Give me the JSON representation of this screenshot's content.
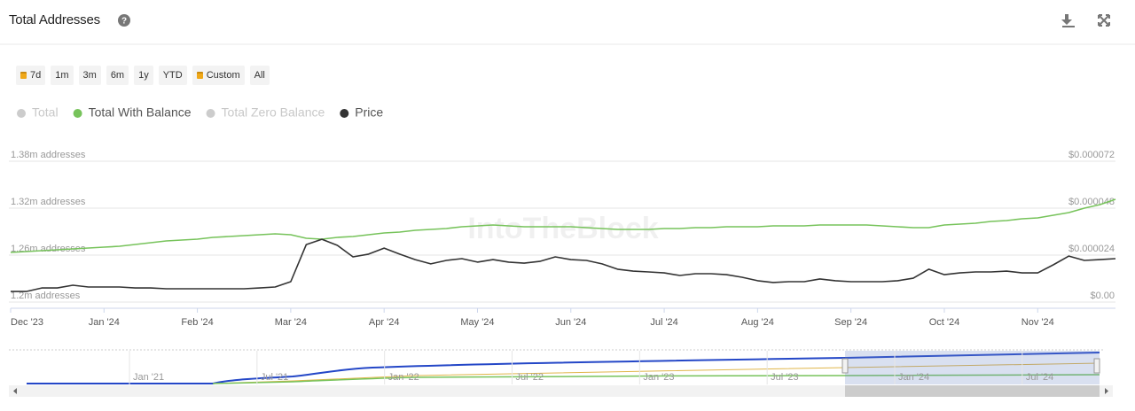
{
  "header": {
    "title": "Total Addresses"
  },
  "range_buttons": [
    {
      "label": "7d",
      "locked": true
    },
    {
      "label": "1m",
      "locked": false
    },
    {
      "label": "3m",
      "locked": false
    },
    {
      "label": "6m",
      "locked": false
    },
    {
      "label": "1y",
      "locked": false
    },
    {
      "label": "YTD",
      "locked": false
    },
    {
      "label": "Custom",
      "locked": true
    },
    {
      "label": "All",
      "locked": false
    }
  ],
  "watermark": "IntoTheBlock",
  "chart_data": {
    "type": "line",
    "categories": [
      "Dec '23",
      null,
      null,
      null,
      null,
      null,
      "Jan '24",
      null,
      null,
      null,
      null,
      null,
      "Feb '24",
      null,
      null,
      null,
      null,
      null,
      "Mar '24",
      null,
      null,
      null,
      null,
      null,
      "Apr '24",
      null,
      null,
      null,
      null,
      null,
      "May '24",
      null,
      null,
      null,
      null,
      null,
      "Jun '24",
      null,
      null,
      null,
      null,
      null,
      "Jul '24",
      null,
      null,
      null,
      null,
      null,
      "Aug '24",
      null,
      null,
      null,
      null,
      null,
      "Sep '24",
      null,
      null,
      null,
      null,
      null,
      "Oct '24",
      null,
      null,
      null,
      null,
      null,
      "Nov '24",
      null,
      null,
      null,
      null,
      null
    ],
    "series": [
      {
        "name": "Total",
        "color": "#cccccc",
        "visible": false
      },
      {
        "name": "Total With Balance",
        "color": "#77c35b",
        "visible": true,
        "axis": "y",
        "values": [
          1263400,
          1264500,
          1265700,
          1266800,
          1267900,
          1269100,
          1270200,
          1271300,
          1273600,
          1275800,
          1278100,
          1279200,
          1280400,
          1282600,
          1283800,
          1284900,
          1286000,
          1287200,
          1286000,
          1281500,
          1280400,
          1282600,
          1283800,
          1286000,
          1288300,
          1289400,
          1291700,
          1292800,
          1294000,
          1296200,
          1297400,
          1298500,
          1297400,
          1296200,
          1296200,
          1296200,
          1296200,
          1295100,
          1294000,
          1292800,
          1292800,
          1292800,
          1294000,
          1294000,
          1295100,
          1295100,
          1296200,
          1296200,
          1296200,
          1297400,
          1297400,
          1297400,
          1298500,
          1298500,
          1298500,
          1298500,
          1297400,
          1296200,
          1295100,
          1295100,
          1298500,
          1299600,
          1300800,
          1303000,
          1304200,
          1306400,
          1307500,
          1310900,
          1314300,
          1320000,
          1324500,
          1331300
        ]
      },
      {
        "name": "Total Zero Balance",
        "color": "#cccccc",
        "visible": false
      },
      {
        "name": "Price",
        "color": "#333333",
        "visible": true,
        "axis": "y2",
        "values": [
          5.4e-06,
          5.4e-06,
          7.2e-06,
          7.2e-06,
          8.6e-06,
          7.7e-06,
          7.7e-06,
          7.7e-06,
          7.2e-06,
          7.2e-06,
          6.8e-06,
          6.8e-06,
          6.8e-06,
          6.8e-06,
          6.8e-06,
          6.8e-06,
          7.2e-06,
          7.7e-06,
          1.04e-05,
          2.94e-05,
          3.21e-05,
          2.9e-05,
          2.31e-05,
          2.45e-05,
          2.76e-05,
          2.45e-05,
          2.17e-05,
          1.95e-05,
          2.13e-05,
          2.22e-05,
          2.04e-05,
          2.17e-05,
          2.04e-05,
          1.99e-05,
          2.08e-05,
          2.31e-05,
          2.17e-05,
          2.13e-05,
          1.95e-05,
          1.68e-05,
          1.58e-05,
          1.54e-05,
          1.49e-05,
          1.36e-05,
          1.45e-05,
          1.45e-05,
          1.4e-05,
          1.27e-05,
          1.09e-05,
          1e-05,
          1.04e-05,
          1.04e-05,
          1.18e-05,
          1.09e-05,
          1.04e-05,
          1.04e-05,
          1.04e-05,
          1.09e-05,
          1.22e-05,
          1.68e-05,
          1.4e-05,
          1.49e-05,
          1.54e-05,
          1.54e-05,
          1.58e-05,
          1.49e-05,
          1.49e-05,
          1.9e-05,
          2.35e-05,
          2.13e-05,
          2.17e-05,
          2.22e-05
        ]
      }
    ],
    "ylim": [
      1200000,
      1380000
    ],
    "yticks": [
      {
        "value": 1200000,
        "label": "1.2m addresses"
      },
      {
        "value": 1260000,
        "label": "1.26m addresses"
      },
      {
        "value": 1320000,
        "label": "1.32m addresses"
      },
      {
        "value": 1380000,
        "label": "1.38m addresses"
      }
    ],
    "y2lim": [
      0,
      7.2e-05
    ],
    "y2ticks": [
      {
        "value": 0,
        "label": "$0.00"
      },
      {
        "value": 2.4e-05,
        "label": "$0.000024"
      },
      {
        "value": 4.8e-05,
        "label": "$0.000048"
      },
      {
        "value": 7.2e-05,
        "label": "$0.000072"
      }
    ],
    "grid": true
  },
  "navigator": {
    "labels": [
      "Jan '21",
      "Jul '21",
      "Jan '22",
      "Jul '22",
      "Jan '23",
      "Jul '23",
      "Jan '24",
      "Jul '24"
    ]
  }
}
